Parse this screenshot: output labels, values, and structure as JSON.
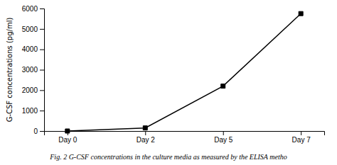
{
  "chart_data": {
    "type": "line",
    "categories": [
      "Day 0",
      "Day 2",
      "Day 5",
      "Day 7"
    ],
    "values": [
      0,
      150,
      2200,
      5750
    ],
    "ylim": [
      0,
      6000
    ],
    "yticks": [
      0,
      1000,
      2000,
      3000,
      4000,
      5000,
      6000
    ],
    "ylabel": "G-CSF concentrations (pg/ml)",
    "caption": "Fig. 2  G-CSF concentrations in the culture media as measured by the ELISA metho",
    "color": "#000000",
    "marker": "square",
    "grid": false
  }
}
